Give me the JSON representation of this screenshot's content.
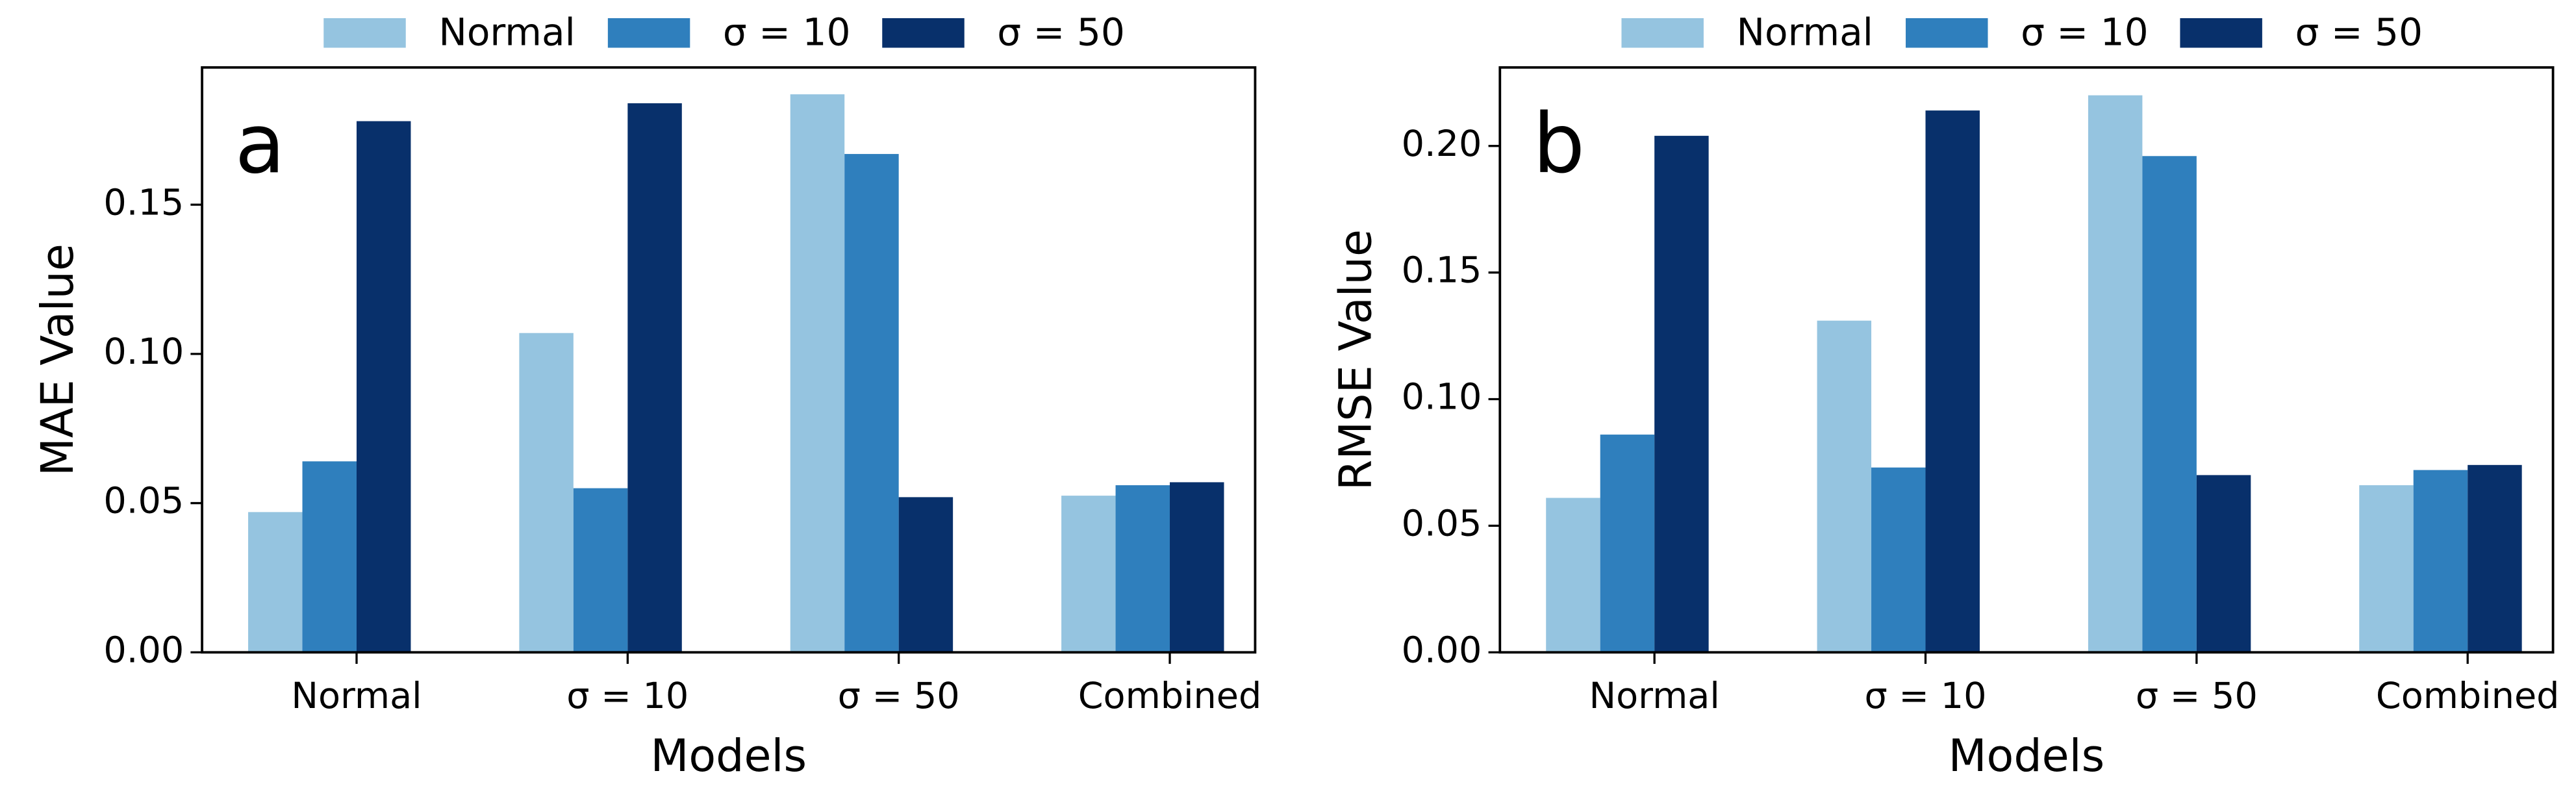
{
  "chart_data": [
    {
      "type": "bar",
      "panel_label": "a",
      "ylabel": "MAE Value",
      "xlabel": "Models",
      "categories": [
        "Normal",
        "σ = 10",
        "σ = 50",
        "Combined"
      ],
      "series": [
        {
          "name": "Normal",
          "color": "#95c4e0",
          "values": [
            0.047,
            0.107,
            0.187,
            0.0525
          ]
        },
        {
          "name": "σ = 10",
          "color": "#2f7fbd",
          "values": [
            0.064,
            0.055,
            0.167,
            0.056
          ]
        },
        {
          "name": "σ = 50",
          "color": "#08306b",
          "values": [
            0.178,
            0.184,
            0.052,
            0.057
          ]
        }
      ],
      "ylim": [
        0,
        0.196
      ],
      "yticks": [
        {
          "value": 0,
          "label": "0.00"
        },
        {
          "value": 0.05,
          "label": "0.05"
        },
        {
          "value": 0.1,
          "label": "0.10"
        },
        {
          "value": 0.15,
          "label": "0.15"
        }
      ],
      "legend": "top"
    },
    {
      "type": "bar",
      "panel_label": "b",
      "ylabel": "RMSE Value",
      "xlabel": "Models",
      "categories": [
        "Normal",
        "σ = 10",
        "σ = 50",
        "Combined"
      ],
      "series": [
        {
          "name": "Normal",
          "color": "#95c4e0",
          "values": [
            0.061,
            0.131,
            0.22,
            0.066
          ]
        },
        {
          "name": "σ = 10",
          "color": "#2f7fbd",
          "values": [
            0.086,
            0.073,
            0.196,
            0.072
          ]
        },
        {
          "name": "σ = 50",
          "color": "#08306b",
          "values": [
            0.204,
            0.214,
            0.07,
            0.074
          ]
        }
      ],
      "ylim": [
        0,
        0.231
      ],
      "yticks": [
        {
          "value": 0,
          "label": "0.00"
        },
        {
          "value": 0.05,
          "label": "0.05"
        },
        {
          "value": 0.1,
          "label": "0.10"
        },
        {
          "value": 0.15,
          "label": "0.15"
        },
        {
          "value": 0.2,
          "label": "0.20"
        }
      ],
      "legend": "top"
    }
  ]
}
